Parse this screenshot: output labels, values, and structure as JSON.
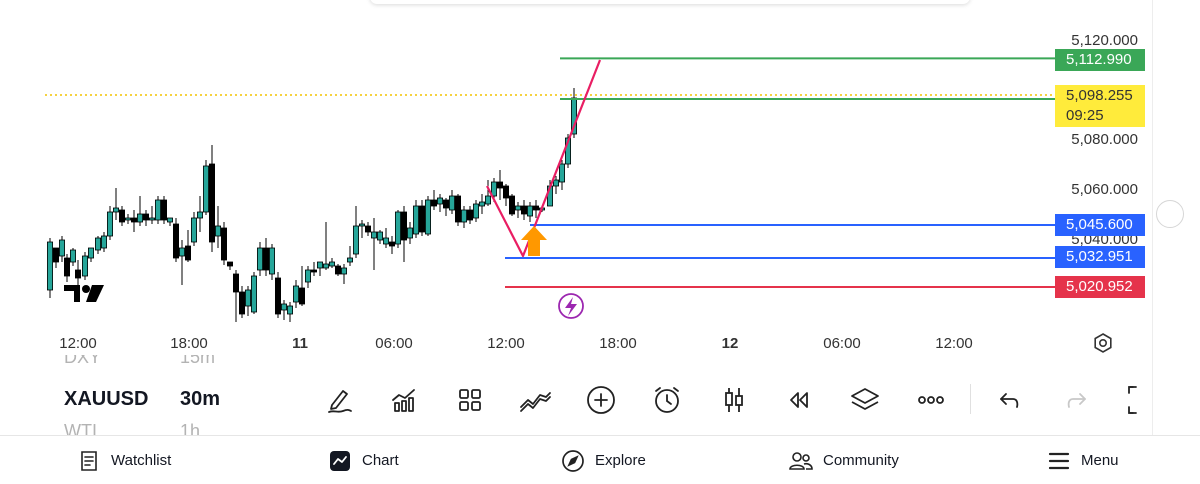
{
  "colors": {
    "up": "#26a69a",
    "down": "#000000",
    "green_line": "#3aa757",
    "blue_line": "#2962ff",
    "red_line": "#e5334b",
    "yellow_tag": "#ffeb3b",
    "pattern_line": "#e91e63",
    "arrow": "#ff9800",
    "alert_icon": "#9c27b0"
  },
  "chart": {
    "symbol": "XAUUSD",
    "timeframe": "30m",
    "current_price": "5,098.255",
    "countdown": "09:25",
    "price_axis": [
      "5,120.000",
      "5,080.000",
      "5,060.000",
      "5,040.000"
    ],
    "levels": [
      {
        "name": "take-profit",
        "label": "5,112.990",
        "price": 5112.99,
        "color": "#3aa757"
      },
      {
        "name": "blue-upper",
        "label": "5,045.600",
        "price": 5045.6,
        "color": "#2962ff"
      },
      {
        "name": "blue-lower",
        "label": "5,032.951",
        "price": 5032.951,
        "color": "#2962ff"
      },
      {
        "name": "stop-loss",
        "label": "5,020.952",
        "price": 5020.952,
        "color": "#e5334b"
      }
    ],
    "time_axis": [
      {
        "label": "12:00",
        "bold": false
      },
      {
        "label": "18:00",
        "bold": false
      },
      {
        "label": "11",
        "bold": true
      },
      {
        "label": "06:00",
        "bold": false
      },
      {
        "label": "12:00",
        "bold": false
      },
      {
        "label": "18:00",
        "bold": false
      },
      {
        "label": "12",
        "bold": true
      },
      {
        "label": "06:00",
        "bold": false
      },
      {
        "label": "12:00",
        "bold": false
      }
    ],
    "logo": "TV"
  },
  "watchlist_scroller": {
    "above": {
      "symbol": "DXY",
      "timeframe": "15m"
    },
    "active": {
      "symbol": "XAUUSD",
      "timeframe": "30m"
    },
    "below": {
      "symbol": "WTI",
      "timeframe": "1h"
    }
  },
  "toolbar": [
    "pencil-icon",
    "indicators-icon",
    "layout-grid-icon",
    "compare-icon",
    "add-icon",
    "alarm-icon",
    "candle-type-icon",
    "replay-icon",
    "layers-icon",
    "more-icon",
    "undo-icon",
    "redo-icon",
    "fullscreen-icon"
  ],
  "bottom_nav": {
    "watchlist": "Watchlist",
    "chart": "Chart",
    "explore": "Explore",
    "community": "Community",
    "menu": "Menu"
  }
}
